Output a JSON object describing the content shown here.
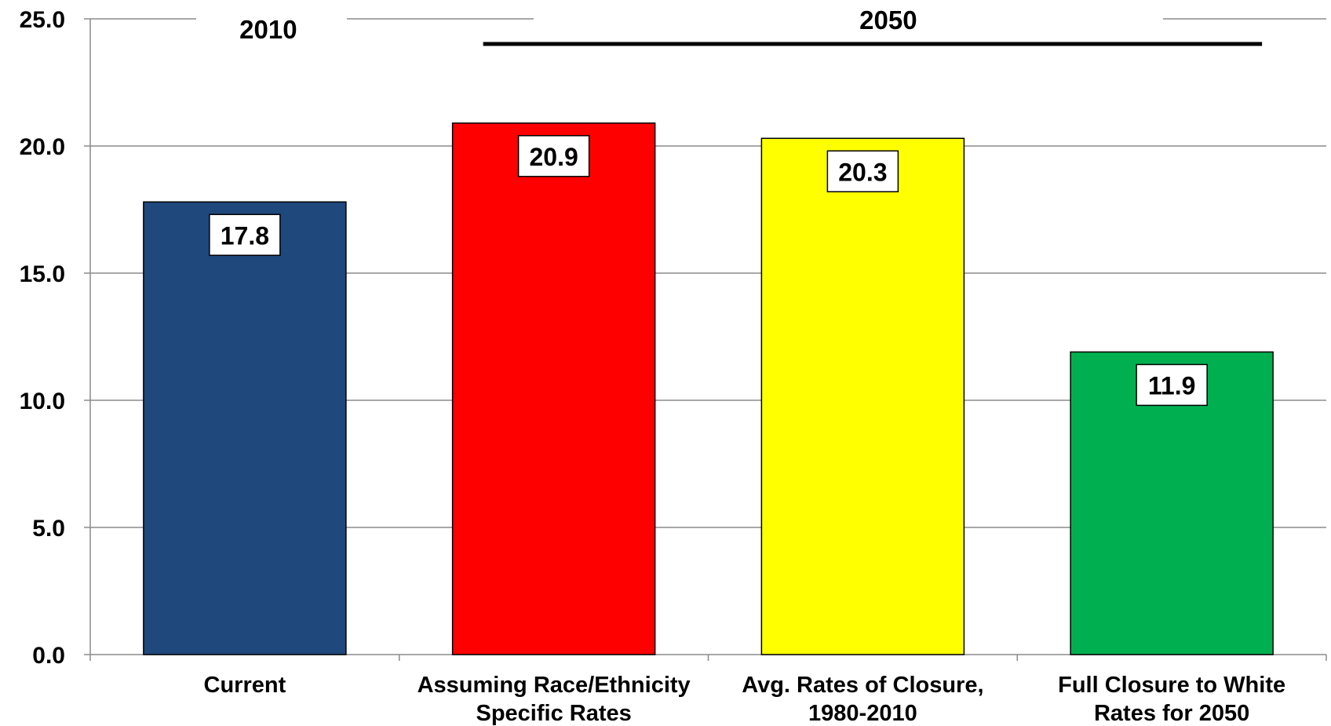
{
  "chart_data": {
    "type": "bar",
    "categories": [
      [
        "Current"
      ],
      [
        "Assuming Race/Ethnicity",
        "Specific Rates"
      ],
      [
        "Avg. Rates of Closure,",
        "1980-2010"
      ],
      [
        "Full Closure to White",
        "Rates for 2050"
      ]
    ],
    "values": [
      17.8,
      20.9,
      20.3,
      11.9
    ],
    "data_labels": [
      "17.8",
      "20.9",
      "20.3",
      "11.9"
    ],
    "colors": [
      "#1F497D",
      "#FF0000",
      "#FFFF00",
      "#00B050"
    ],
    "yticks": [
      "0.0",
      "5.0",
      "10.0",
      "15.0",
      "20.0",
      "25.0"
    ],
    "ylim": [
      0,
      25
    ],
    "grid": true,
    "title": "",
    "xlabel": "",
    "ylabel": "",
    "groups": [
      {
        "label": "2010",
        "categories": [
          0
        ]
      },
      {
        "label": "2050",
        "categories": [
          1,
          2,
          3
        ]
      }
    ]
  }
}
